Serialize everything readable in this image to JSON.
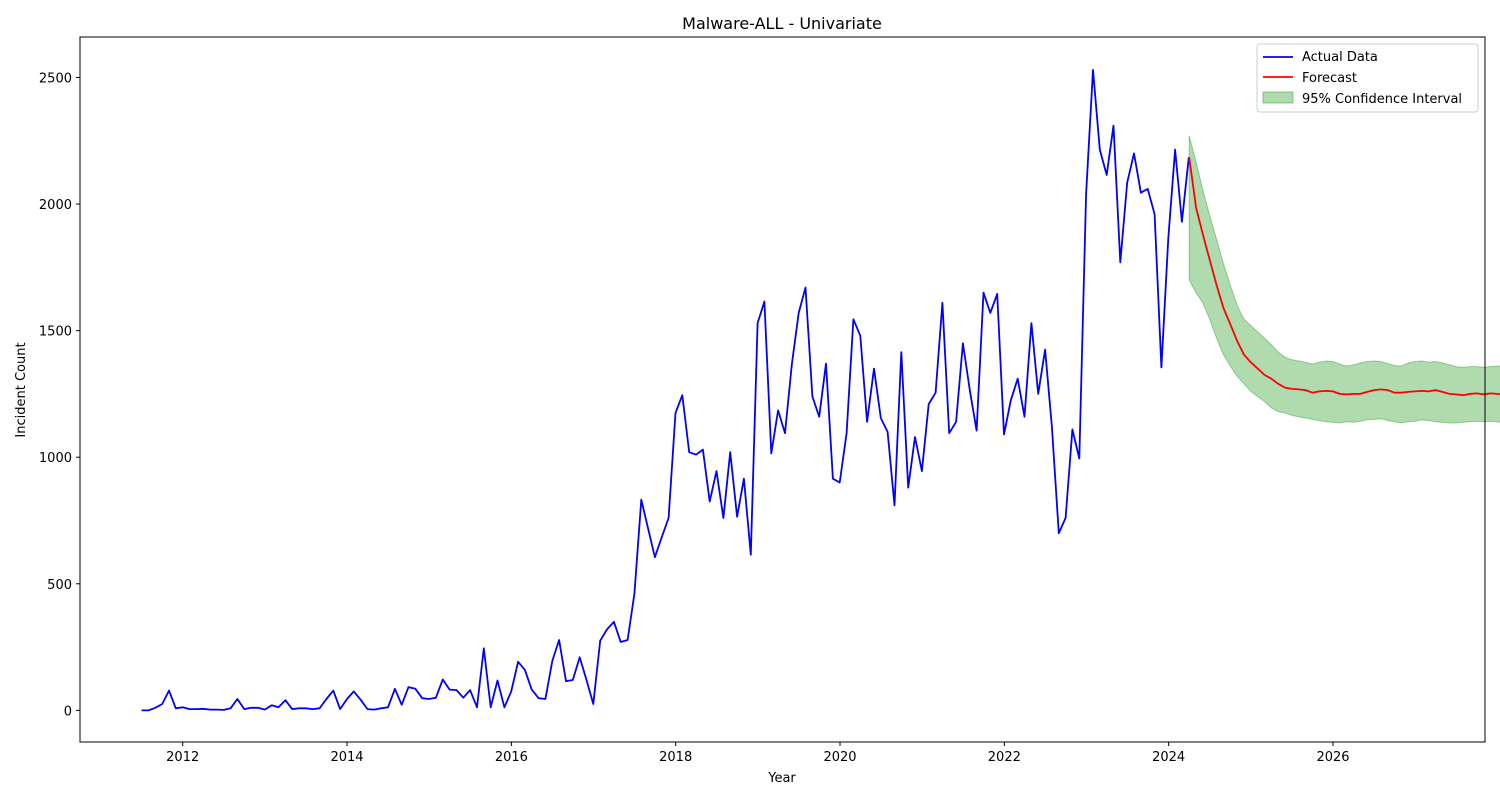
{
  "chart_data": {
    "type": "line",
    "title": "Malware-ALL - Univariate",
    "xlabel": "Year",
    "ylabel": "Incident Count",
    "xlim": [
      2010.75,
      2027.85
    ],
    "ylim": [
      -125,
      2660
    ],
    "x_ticks": [
      2012,
      2014,
      2016,
      2018,
      2020,
      2022,
      2024,
      2026
    ],
    "y_ticks": [
      0,
      500,
      1000,
      1500,
      2000,
      2500
    ],
    "grid": false,
    "legend_position": "top-right",
    "legend": [
      {
        "label": "Actual Data",
        "kind": "line",
        "color": "#0000ff"
      },
      {
        "label": "Forecast",
        "kind": "line",
        "color": "#ff0000"
      },
      {
        "label": "95% Confidence Interval",
        "kind": "patch",
        "color": "#2ca02c"
      }
    ],
    "series": [
      {
        "name": "Actual Data",
        "color": "#0000ff",
        "x_start": 2011.5,
        "x_step": 0.0833,
        "values": [
          0,
          0,
          10,
          25,
          78,
          8,
          12,
          5,
          5,
          6,
          3,
          3,
          2,
          8,
          45,
          5,
          10,
          10,
          3,
          20,
          12,
          40,
          5,
          8,
          8,
          5,
          8,
          45,
          78,
          5,
          45,
          75,
          42,
          5,
          3,
          8,
          12,
          85,
          22,
          92,
          85,
          48,
          45,
          50,
          122,
          82,
          80,
          50,
          80,
          12,
          245,
          12,
          118,
          12,
          75,
          192,
          160,
          82,
          48,
          45,
          195,
          278,
          115,
          120,
          210,
          120,
          25,
          275,
          320,
          350,
          270,
          278,
          460,
          832,
          718,
          605,
          685,
          760,
          1175,
          1245,
          1020,
          1010,
          1030,
          825,
          945,
          760,
          1020,
          765,
          915,
          615,
          1530,
          1615,
          1015,
          1185,
          1095,
          1365,
          1570,
          1670,
          1240,
          1160,
          1370,
          915,
          900,
          1095,
          1545,
          1480,
          1140,
          1350,
          1155,
          1100,
          810,
          1415,
          880,
          1080,
          945,
          1210,
          1255,
          1610,
          1095,
          1140,
          1450,
          1265,
          1105,
          1650,
          1570,
          1645,
          1090,
          1225,
          1310,
          1160,
          1530,
          1250,
          1425,
          1120,
          700,
          760,
          1110,
          995,
          2040,
          2530,
          2215,
          2115,
          2310,
          1770,
          2085,
          2200,
          2045,
          2060,
          1960,
          1355,
          1865,
          2215,
          1930,
          2185
        ]
      },
      {
        "name": "Forecast",
        "color": "#ff0000",
        "x_start": 2024.25,
        "x_step": 0.0833,
        "values": [
          2185,
          1985,
          1880,
          1780,
          1680,
          1590,
          1525,
          1460,
          1405,
          1375,
          1350,
          1325,
          1310,
          1290,
          1275,
          1270,
          1268,
          1265,
          1255,
          1260,
          1262,
          1260,
          1250,
          1248,
          1250,
          1250,
          1258,
          1265,
          1268,
          1265,
          1255,
          1255,
          1258,
          1260,
          1262,
          1260,
          1265,
          1258,
          1250,
          1248,
          1245,
          1250,
          1252,
          1248,
          1252,
          1250,
          1248,
          1245,
          1242,
          1240
        ]
      }
    ],
    "confidence_interval": {
      "name": "95% Confidence Interval",
      "color": "#2ca02c",
      "x_start": 2024.25,
      "x_step": 0.0833,
      "upper": [
        2270,
        2165,
        2055,
        1955,
        1860,
        1765,
        1680,
        1600,
        1545,
        1520,
        1495,
        1470,
        1445,
        1415,
        1395,
        1385,
        1380,
        1375,
        1368,
        1375,
        1380,
        1378,
        1368,
        1360,
        1365,
        1372,
        1378,
        1380,
        1378,
        1370,
        1362,
        1360,
        1372,
        1378,
        1380,
        1375,
        1378,
        1372,
        1365,
        1358,
        1355,
        1358,
        1358,
        1355,
        1358,
        1360,
        1360,
        1362,
        1368,
        1350
      ],
      "lower": [
        1700,
        1650,
        1610,
        1545,
        1470,
        1405,
        1360,
        1320,
        1290,
        1260,
        1240,
        1220,
        1195,
        1180,
        1175,
        1165,
        1160,
        1155,
        1150,
        1145,
        1140,
        1138,
        1135,
        1140,
        1138,
        1142,
        1148,
        1150,
        1152,
        1145,
        1140,
        1135,
        1140,
        1142,
        1148,
        1145,
        1140,
        1138,
        1135,
        1135,
        1138,
        1140,
        1142,
        1140,
        1142,
        1140,
        1135,
        1132,
        1135,
        1140
      ]
    }
  }
}
